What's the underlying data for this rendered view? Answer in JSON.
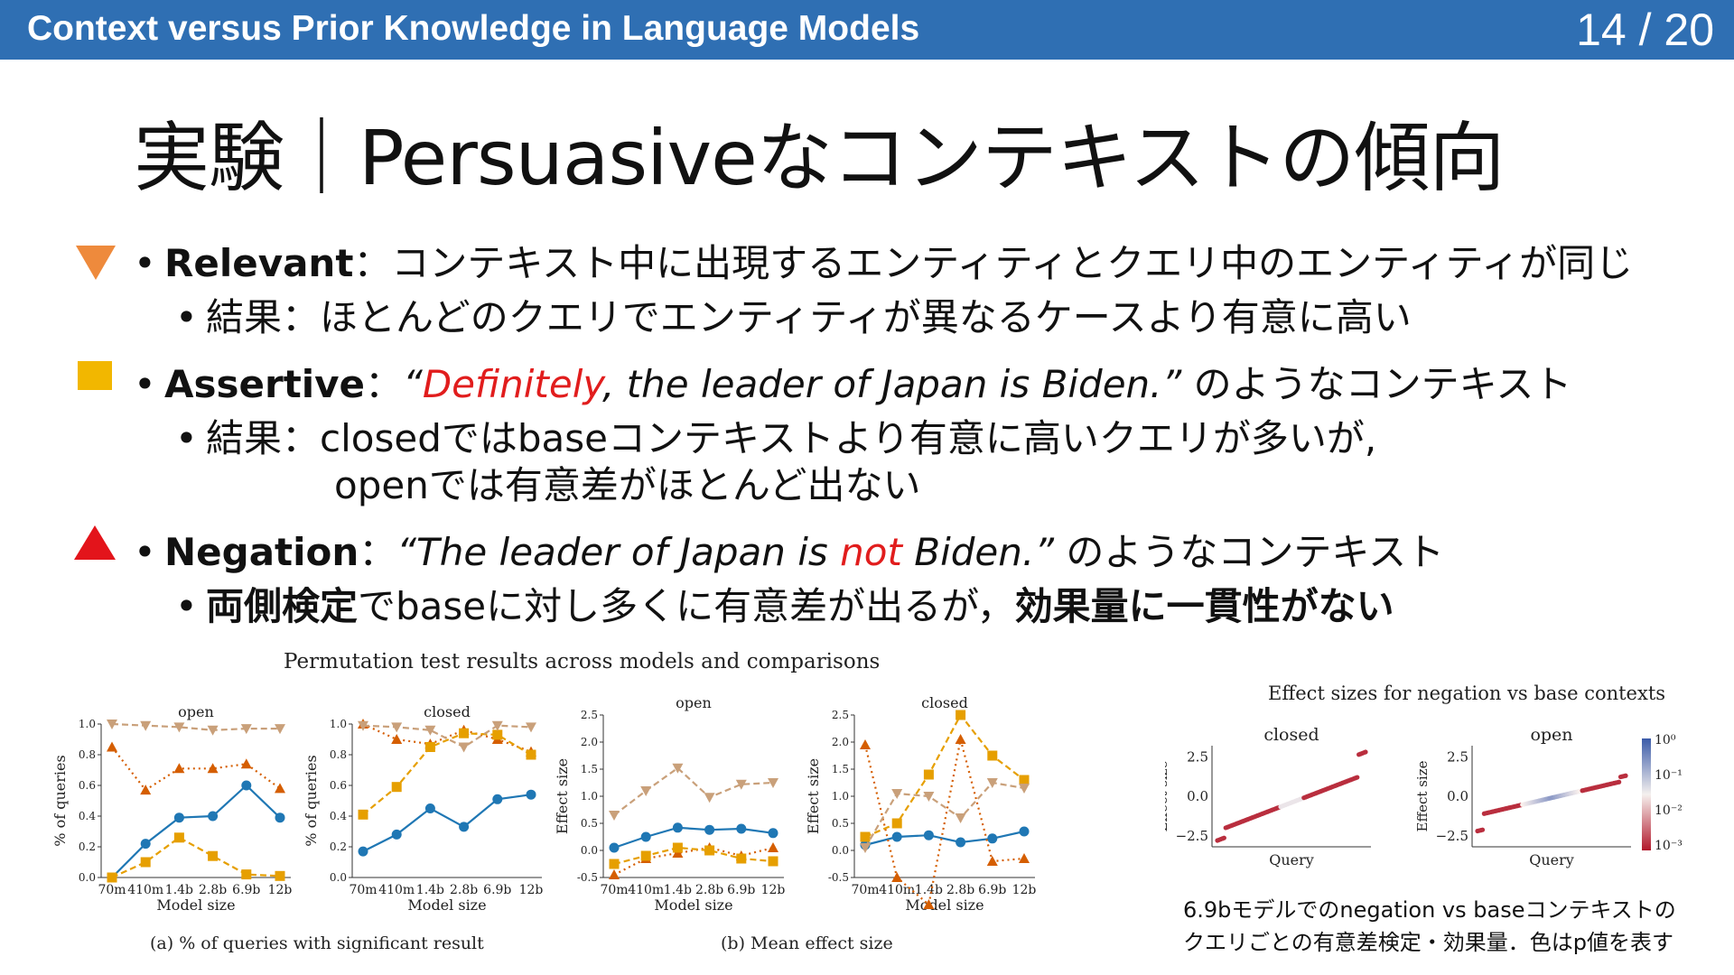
{
  "header": {
    "title": "Context versus Prior Knowledge in Language Models",
    "page": "14 / 20"
  },
  "slide_title": "実験｜Persuasiveなコンテキストの傾向",
  "bullets": {
    "relevant": {
      "keyword": "Relevant",
      "sep": "：",
      "text": "コンテキスト中に出現するエンティティとクエリ中のエンティティが同じ",
      "sub_label": "結果：",
      "sub_text": "ほとんどのクエリでエンティティが異なるケースより有意に高い"
    },
    "assertive": {
      "keyword": "Assertive",
      "sep": "：",
      "quote_open": "“",
      "quote_red": "Definitely",
      "quote_rest": ", the leader of Japan is Biden.”",
      "tail": " のようなコンテキスト",
      "sub_label": "結果：",
      "sub_text1": "closedではbaseコンテキストより有意に高いクエリが多いが,",
      "sub_text2": "openでは有意差がほとんど出ない"
    },
    "negation": {
      "keyword": "Negation",
      "sep": "：",
      "quote_a": "“The leader of Japan is ",
      "quote_red": "not",
      "quote_b": " Biden.”",
      "tail": " のようなコンテキスト",
      "sub_bold1": "両側検定",
      "sub_mid": "でbaseに対し多くに有意差が出るが，",
      "sub_bold2": "効果量に一貫性がない"
    }
  },
  "figure_left": {
    "title": "Permutation test results across models and comparisons",
    "caption_a": "(a) % of queries with significant result",
    "caption_b": "(b) Mean effect size"
  },
  "figure_right": {
    "title": "Effect sizes for negation vs base contexts",
    "caption_line1": "6.9bモデルでのnegation vs baseコンテキストの",
    "caption_line2": "クエリごとの有意差検定・効果量．色はp値を表す"
  },
  "colors": {
    "blue": "#1f77b4",
    "orange": "#d55e00",
    "yellow": "#e69f00",
    "tan": "#c9a07a",
    "red": "#d91a1a",
    "header": "#2f6fb3"
  },
  "chart_data": [
    {
      "type": "line",
      "title": "open",
      "xlabel": "Model size",
      "ylabel": "% of queries",
      "categories": [
        "70m",
        "410m",
        "1.4b",
        "2.8b",
        "6.9b",
        "12b"
      ],
      "ylim": [
        0,
        1.0
      ],
      "yticks": [
        "0.0",
        "0.2",
        "0.4",
        "0.6",
        "0.8",
        "1.0"
      ],
      "series": [
        {
          "values": [
            0.0,
            0.22,
            0.39,
            0.4,
            0.6,
            0.39
          ],
          "color": "#1f77b4",
          "marker": "circle",
          "dash": "solid"
        },
        {
          "values": [
            0.85,
            0.57,
            0.71,
            0.71,
            0.74,
            0.58
          ],
          "color": "#d55e00",
          "marker": "triangle-up",
          "dash": "dotted"
        },
        {
          "values": [
            0.0,
            0.1,
            0.26,
            0.14,
            0.02,
            0.01
          ],
          "color": "#e69f00",
          "marker": "square",
          "dash": "dashed"
        },
        {
          "values": [
            1.0,
            0.99,
            0.98,
            0.96,
            0.97,
            0.97
          ],
          "color": "#c9a07a",
          "marker": "triangle-down",
          "dash": "dashed"
        }
      ]
    },
    {
      "type": "line",
      "title": "closed",
      "xlabel": "Model size",
      "ylabel": "% of queries",
      "categories": [
        "70m",
        "410m",
        "1.4b",
        "2.8b",
        "6.9b",
        "12b"
      ],
      "ylim": [
        0,
        1.0
      ],
      "yticks": [
        "0.0",
        "0.2",
        "0.4",
        "0.6",
        "0.8",
        "1.0"
      ],
      "series": [
        {
          "values": [
            0.17,
            0.28,
            0.45,
            0.33,
            0.51,
            0.54
          ],
          "color": "#1f77b4",
          "marker": "circle",
          "dash": "solid"
        },
        {
          "values": [
            1.0,
            0.9,
            0.87,
            0.96,
            0.9,
            0.82
          ],
          "color": "#d55e00",
          "marker": "triangle-up",
          "dash": "dotted"
        },
        {
          "values": [
            0.41,
            0.59,
            0.85,
            0.94,
            0.93,
            0.8
          ],
          "color": "#e69f00",
          "marker": "square",
          "dash": "dashed"
        },
        {
          "values": [
            0.99,
            0.98,
            0.96,
            0.85,
            0.99,
            0.98
          ],
          "color": "#c9a07a",
          "marker": "triangle-down",
          "dash": "dashed"
        }
      ]
    },
    {
      "type": "line",
      "title": "open",
      "xlabel": "Model size",
      "ylabel": "Effect size",
      "categories": [
        "70m",
        "410m",
        "1.4b",
        "2.8b",
        "6.9b",
        "12b"
      ],
      "ylim": [
        -0.5,
        2.5
      ],
      "yticks": [
        "-0.5",
        "0.0",
        "0.5",
        "1.0",
        "1.5",
        "2.0",
        "2.5"
      ],
      "series": [
        {
          "values": [
            0.05,
            0.25,
            0.42,
            0.38,
            0.4,
            0.32
          ],
          "color": "#1f77b4",
          "marker": "circle",
          "dash": "solid"
        },
        {
          "values": [
            -0.45,
            -0.15,
            -0.05,
            0.05,
            -0.1,
            0.05
          ],
          "color": "#d55e00",
          "marker": "triangle-up",
          "dash": "dotted"
        },
        {
          "values": [
            -0.25,
            -0.1,
            0.05,
            0.0,
            -0.15,
            -0.2
          ],
          "color": "#e69f00",
          "marker": "square",
          "dash": "dashed"
        },
        {
          "values": [
            0.65,
            1.1,
            1.52,
            0.98,
            1.22,
            1.25
          ],
          "color": "#c9a07a",
          "marker": "triangle-down",
          "dash": "dashed"
        }
      ]
    },
    {
      "type": "line",
      "title": "closed",
      "xlabel": "Model size",
      "ylabel": "Effect size",
      "categories": [
        "70m",
        "410m",
        "1.4b",
        "2.8b",
        "6.9b",
        "12b"
      ],
      "ylim": [
        -0.5,
        2.5
      ],
      "yticks": [
        "-0.5",
        "0.0",
        "0.5",
        "1.0",
        "1.5",
        "2.0",
        "2.5"
      ],
      "series": [
        {
          "values": [
            0.1,
            0.25,
            0.28,
            0.15,
            0.22,
            0.35
          ],
          "color": "#1f77b4",
          "marker": "circle",
          "dash": "solid"
        },
        {
          "values": [
            1.95,
            -0.5,
            -1.0,
            2.05,
            -0.2,
            -0.15
          ],
          "color": "#d55e00",
          "marker": "triangle-up",
          "dash": "dotted"
        },
        {
          "values": [
            0.25,
            0.5,
            1.4,
            2.5,
            1.75,
            1.3
          ],
          "color": "#e69f00",
          "marker": "square",
          "dash": "dashed"
        },
        {
          "values": [
            0.05,
            1.05,
            1.0,
            0.6,
            1.25,
            1.15
          ],
          "color": "#c9a07a",
          "marker": "triangle-down",
          "dash": "dashed"
        }
      ]
    },
    {
      "type": "scatter",
      "title": "closed",
      "xlabel": "Query",
      "ylabel": "Effect size",
      "yticks": [
        "−2.5",
        "0.0",
        "2.5"
      ],
      "ylim": [
        -3.2,
        3.2
      ]
    },
    {
      "type": "scatter",
      "title": "open",
      "xlabel": "Query",
      "ylabel": "Effect size",
      "yticks": [
        "−2.5",
        "0.0",
        "2.5"
      ],
      "ylim": [
        -3.2,
        3.2
      ],
      "colorbar": {
        "labels": [
          "10⁰",
          "10⁻¹",
          "10⁻²",
          "10⁻³"
        ]
      }
    }
  ]
}
